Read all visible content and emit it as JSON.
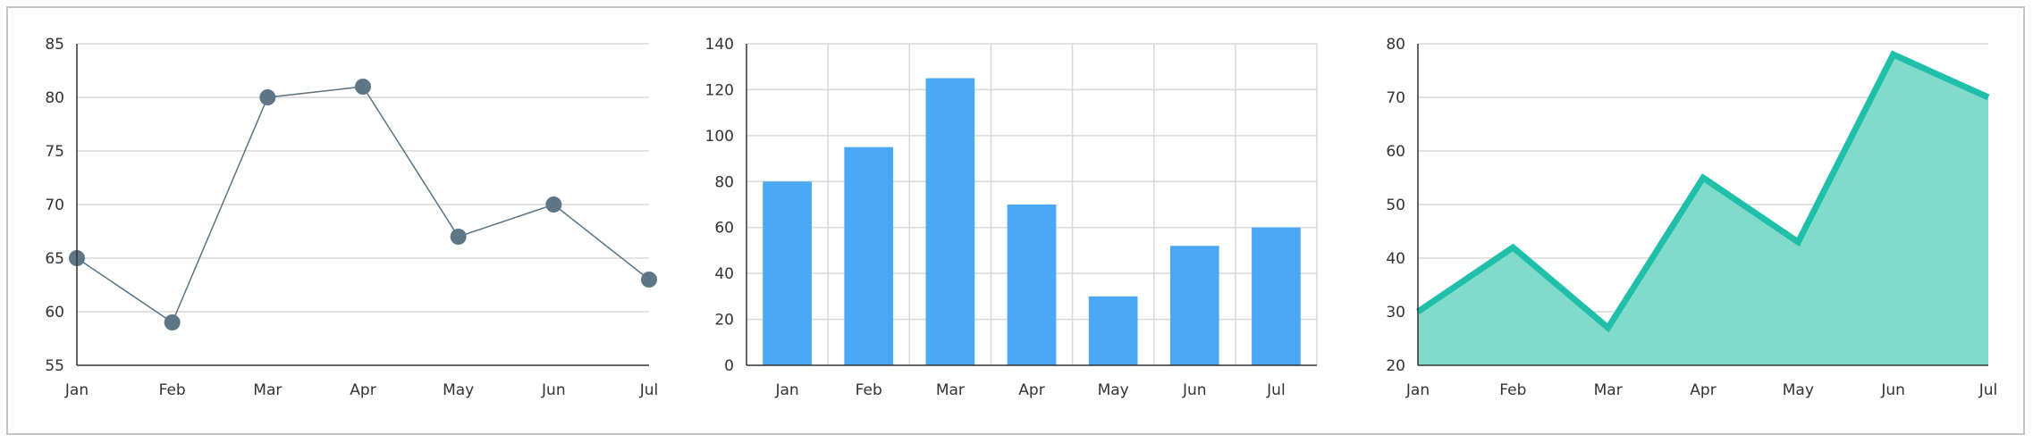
{
  "chart_data": [
    {
      "type": "line",
      "categories": [
        "Jan",
        "Feb",
        "Mar",
        "Apr",
        "May",
        "Jun",
        "Jul"
      ],
      "values": [
        65,
        59,
        80,
        81,
        67,
        70,
        63
      ],
      "ylim": [
        55,
        85
      ],
      "yticks": [
        55,
        60,
        65,
        70,
        75,
        80,
        85
      ],
      "grid": "horizontal",
      "colors": {
        "line": "#5a7384",
        "point": "#5f7686"
      }
    },
    {
      "type": "bar",
      "categories": [
        "Jan",
        "Feb",
        "Mar",
        "Apr",
        "May",
        "Jun",
        "Jul"
      ],
      "values": [
        80,
        95,
        125,
        70,
        30,
        52,
        60
      ],
      "ylim": [
        0,
        140
      ],
      "yticks": [
        0,
        20,
        40,
        60,
        80,
        100,
        120,
        140
      ],
      "grid": "both",
      "colors": {
        "bar": "#4aa8f7"
      }
    },
    {
      "type": "area",
      "categories": [
        "Jan",
        "Feb",
        "Mar",
        "Apr",
        "May",
        "Jun",
        "Jul"
      ],
      "values": [
        30,
        42,
        27,
        55,
        43,
        78,
        70
      ],
      "ylim": [
        20,
        80
      ],
      "yticks": [
        20,
        30,
        40,
        50,
        60,
        70,
        80
      ],
      "grid": "horizontal",
      "colors": {
        "line": "#1fbfaa",
        "fill": "#81dbcb"
      }
    }
  ]
}
